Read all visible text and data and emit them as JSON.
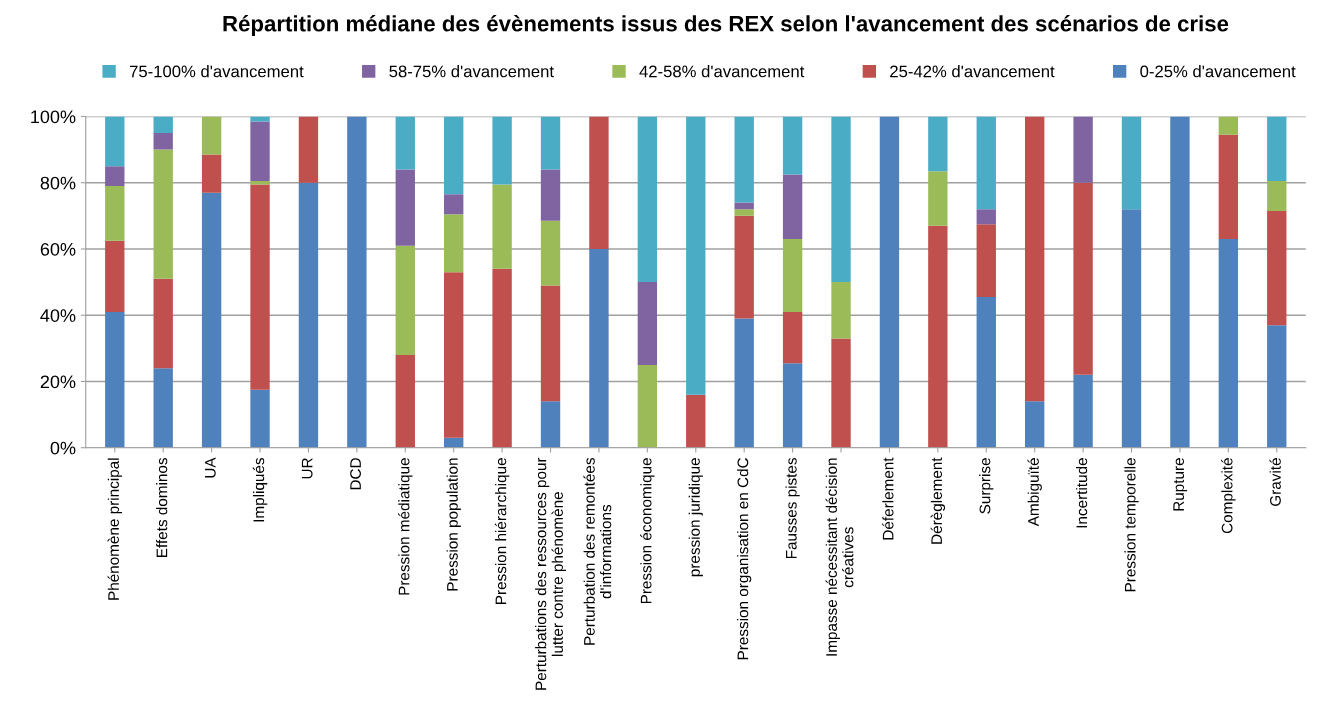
{
  "chart_data": {
    "type": "bar",
    "stacked": true,
    "title": "Répartition médiane des évènements issus des REX selon l'avancement des scénarios de crise",
    "categories": [
      "Phénomène principal",
      "Effets dominos",
      "UA",
      "Impliqués",
      "UR",
      "DCD",
      "Pression médiatique",
      "Pression population",
      "Pression hiérarchique",
      "Perturbations des ressources pour\nlutter contre phénomène",
      "Perturbation des remontées\nd'informations",
      "Pression économique",
      "pression juridique",
      "Pression organisation en CdC",
      "Fausses pistes",
      "Impasse nécessitant décision\ncréatives",
      "Déferlement",
      "Dérèglement",
      "Surprise",
      "Ambiguïté",
      "Incertitude",
      "Pression temporelle",
      "Rupture",
      "Complexité",
      "Gravité"
    ],
    "series": [
      {
        "name": "0-25% d'avancement",
        "color": "#4f81bd",
        "values": [
          41,
          24,
          77,
          17.5,
          80,
          100,
          0,
          3,
          0,
          14,
          60,
          0,
          0,
          39,
          25.5,
          0,
          100,
          0,
          45.5,
          14,
          22,
          72,
          100,
          63,
          37
        ]
      },
      {
        "name": "25-42% d'avancement",
        "color": "#c0504d",
        "values": [
          21.5,
          27,
          11.5,
          62,
          20,
          0,
          28,
          50,
          54,
          35,
          40,
          0,
          16,
          31,
          15.5,
          33,
          0,
          67,
          22,
          86,
          58,
          0,
          0,
          31.5,
          34.5
        ]
      },
      {
        "name": "42-58% d'avancement",
        "color": "#9bbb59",
        "values": [
          16.5,
          39,
          11.5,
          1,
          0,
          0,
          33,
          17.5,
          25.5,
          19.5,
          0,
          25,
          0,
          2,
          22,
          17,
          0,
          16.5,
          0,
          0,
          0,
          0,
          0,
          5.5,
          9
        ]
      },
      {
        "name": "58-75% d'avancement",
        "color": "#8064a2",
        "values": [
          6,
          5,
          0,
          18,
          0,
          0,
          23,
          6,
          0,
          15.5,
          0,
          25,
          0,
          2,
          19.5,
          0,
          0,
          0,
          4.5,
          0,
          20,
          0,
          0,
          0,
          0
        ]
      },
      {
        "name": "75-100% d'avancement",
        "color": "#4bacc6",
        "values": [
          15,
          5,
          0,
          1.5,
          0,
          0,
          16,
          23.5,
          20.5,
          16,
          0,
          50,
          84,
          26,
          17.5,
          50,
          0,
          16.5,
          28,
          0,
          0,
          28,
          0,
          0,
          19.5
        ]
      }
    ],
    "ylim": [
      0,
      100
    ],
    "yticks": [
      {
        "value": 0,
        "label": "0%"
      },
      {
        "value": 20,
        "label": "20%"
      },
      {
        "value": 40,
        "label": "40%"
      },
      {
        "value": 60,
        "label": "60%"
      },
      {
        "value": 80,
        "label": "80%"
      },
      {
        "value": 100,
        "label": "100%"
      }
    ],
    "grid": "y",
    "legend": "top"
  }
}
